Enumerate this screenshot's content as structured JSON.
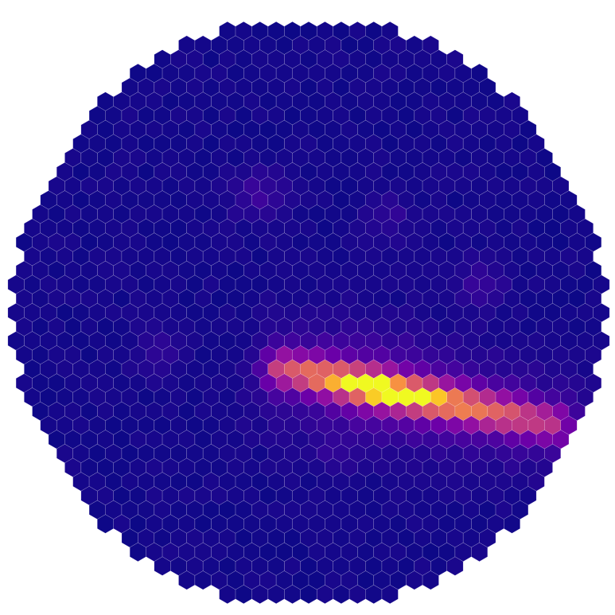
{
  "camera": {
    "colormap": "plasma",
    "background_color": "#ffffff",
    "pixel_shape": "hexagon",
    "pixel_stroke_color": "#ffffff",
    "baseline_color": "#0d0887",
    "peak_color": "#f0f921"
  },
  "signal": {
    "shower_axis_start": [
      0.46,
      0.6
    ],
    "shower_axis_end": [
      0.9,
      0.69
    ],
    "shower_peak_fraction": 0.35,
    "minor_clusters": [
      {
        "center": [
          0.42,
          0.32
        ],
        "amplitude": 0.1
      },
      {
        "center": [
          0.63,
          0.35
        ],
        "amplitude": 0.07
      },
      {
        "center": [
          0.26,
          0.57
        ],
        "amplitude": 0.07
      },
      {
        "center": [
          0.78,
          0.46
        ],
        "amplitude": 0.09
      },
      {
        "center": [
          0.55,
          0.74
        ],
        "amplitude": 0.05
      }
    ]
  }
}
